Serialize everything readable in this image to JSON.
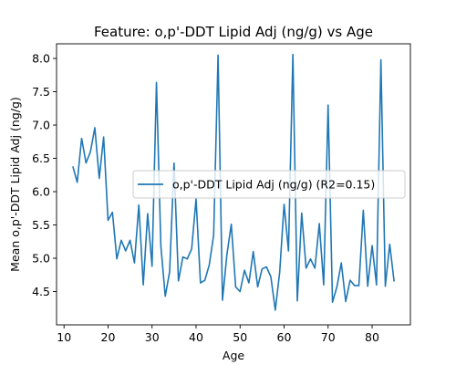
{
  "chart_data": {
    "type": "line",
    "title": "Feature: o,p'-DDT Lipid Adj (ng/g) vs Age",
    "xlabel": "Age",
    "ylabel": "Mean o,p'-DDT Lipid Adj (ng/g)",
    "xlim": [
      8.3,
      88.7
    ],
    "ylim": [
      4.0,
      8.22
    ],
    "xticks": [
      10,
      20,
      30,
      40,
      50,
      60,
      70,
      80
    ],
    "yticks": [
      4.5,
      5.0,
      5.5,
      6.0,
      6.5,
      7.0,
      7.5,
      8.0
    ],
    "ytick_labels": [
      "4.5",
      "5.0",
      "5.5",
      "6.0",
      "6.5",
      "7.0",
      "7.5",
      "8.0"
    ],
    "grid": false,
    "legend_position": "center-right",
    "series": [
      {
        "name": "o,p'-DDT Lipid Adj (ng/g) (R2=0.15)",
        "color": "#1f77b4",
        "x": [
          12,
          13,
          14,
          15,
          16,
          17,
          18,
          19,
          20,
          21,
          22,
          23,
          24,
          25,
          26,
          27,
          28,
          29,
          30,
          31,
          32,
          33,
          34,
          35,
          36,
          37,
          38,
          39,
          40,
          41,
          42,
          43,
          44,
          45,
          46,
          47,
          48,
          49,
          50,
          51,
          52,
          53,
          54,
          55,
          56,
          57,
          58,
          59,
          60,
          61,
          62,
          63,
          64,
          65,
          66,
          67,
          68,
          69,
          70,
          71,
          72,
          73,
          74,
          75,
          76,
          77,
          78,
          79,
          80,
          81,
          82,
          83,
          84,
          85
        ],
        "y": [
          6.38,
          6.14,
          6.8,
          6.43,
          6.6,
          6.96,
          6.2,
          6.82,
          5.57,
          5.69,
          4.99,
          5.27,
          5.11,
          5.27,
          4.93,
          5.8,
          4.6,
          5.67,
          4.88,
          7.64,
          5.19,
          4.43,
          4.8,
          6.43,
          4.66,
          5.02,
          4.99,
          5.14,
          5.89,
          4.63,
          4.67,
          4.9,
          5.35,
          8.05,
          4.37,
          5.05,
          5.51,
          4.57,
          4.5,
          4.82,
          4.63,
          5.1,
          4.57,
          4.84,
          4.87,
          4.72,
          4.22,
          4.79,
          5.81,
          5.11,
          8.06,
          4.36,
          5.68,
          4.85,
          4.99,
          4.85,
          5.52,
          4.6,
          7.3,
          4.34,
          4.57,
          4.93,
          4.35,
          4.67,
          4.59,
          4.59,
          5.72,
          4.58,
          5.19,
          4.6,
          7.98,
          4.58,
          5.21,
          4.65
        ]
      }
    ]
  }
}
